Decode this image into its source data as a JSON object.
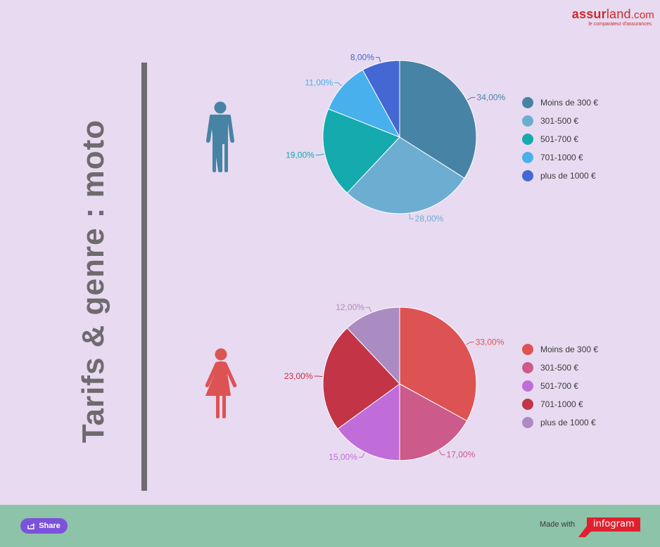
{
  "logo": {
    "part1": "assur",
    "part2": "land",
    "part3": ".com",
    "tagline": "le comparateur d'assurances"
  },
  "title": "Tarifs & genre : moto",
  "chart_data": [
    {
      "type": "pie",
      "group": "male",
      "icon": "male-person-icon",
      "categories": [
        "Moins de 300 €",
        "301-500 €",
        "501-700 €",
        "701-1000 €",
        "plus de 1000 €"
      ],
      "values": [
        34,
        28,
        19,
        11,
        8
      ],
      "labels": [
        "34,00%",
        "28,00%",
        "19,00%",
        "11,00%",
        "8,00%"
      ],
      "colors": [
        "#4783a5",
        "#6eadd2",
        "#15aaad",
        "#48b1ed",
        "#4467d3"
      ],
      "legend_position": "right"
    },
    {
      "type": "pie",
      "group": "female",
      "icon": "female-person-icon",
      "categories": [
        "Moins de 300 €",
        "301-500 €",
        "501-700 €",
        "701-1000 €",
        "plus de 1000 €"
      ],
      "values": [
        33,
        17,
        15,
        23,
        12
      ],
      "labels": [
        "33,00%",
        "17,00%",
        "15,00%",
        "23,00%",
        "12,00%"
      ],
      "colors": [
        "#dd5353",
        "#cc5a8a",
        "#c06dda",
        "#c23446",
        "#ab8cc2"
      ],
      "legend_position": "right"
    }
  ],
  "footer": {
    "share_label": "Share",
    "made_with": "Made with",
    "brand": "infogram"
  },
  "colors": {
    "background": "#e8daf0",
    "footer": "#8dc3a8",
    "title": "#6e6a6f",
    "male_icon": "#4783a5",
    "female_icon": "#dd5353",
    "share_button": "#7b52d9",
    "brand_red": "#e0202e"
  }
}
